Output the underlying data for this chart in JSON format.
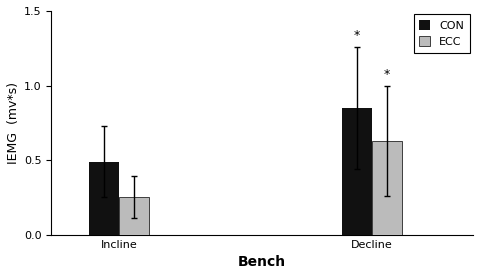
{
  "categories": [
    "Incline",
    "Decline"
  ],
  "con_values": [
    0.49,
    0.85
  ],
  "ecc_values": [
    0.25,
    0.63
  ],
  "con_errors": [
    0.24,
    0.41
  ],
  "ecc_errors": [
    0.14,
    0.37
  ],
  "ylabel": "IEMG  (mv*s)",
  "xlabel": "Bench",
  "ylim": [
    0,
    1.5
  ],
  "yticks": [
    0,
    0.5,
    1.0,
    1.5
  ],
  "bar_width": 0.18,
  "group_centers": [
    1.0,
    2.5
  ],
  "con_color": "#111111",
  "ecc_color": "#bbbbbb",
  "background_color": "#ffffff",
  "asterisk_decline_con": "*",
  "asterisk_decline_ecc": "*",
  "legend_labels": [
    "CON",
    "ECC"
  ],
  "label_fontsize": 9,
  "tick_fontsize": 8,
  "xlabel_fontsize": 10
}
